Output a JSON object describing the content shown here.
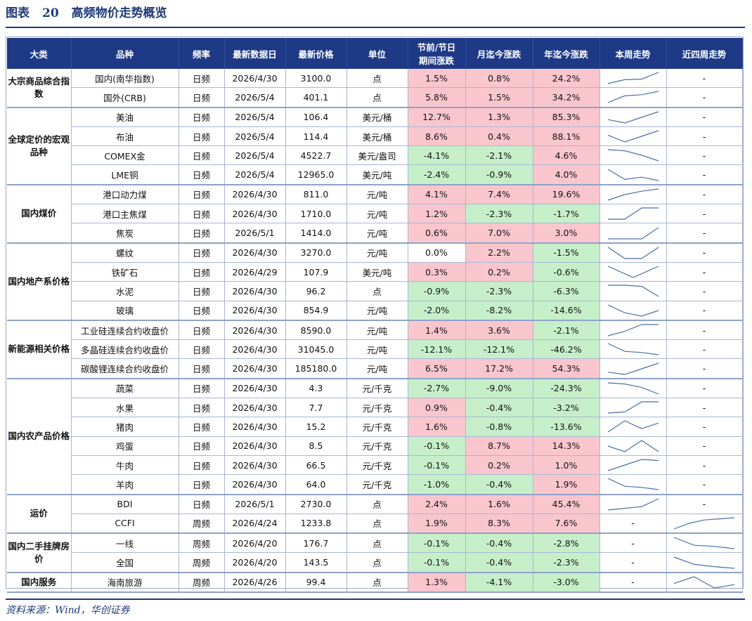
{
  "title": {
    "label": "图表",
    "number": "20",
    "text": "高频物价走势概览"
  },
  "headers": [
    "大类",
    "品种",
    "频率",
    "最新数据日",
    "最新价格",
    "单位",
    "节前/节日\n期间涨跌",
    "月迄今涨跌",
    "年迄今涨跌",
    "本周走势",
    "近四周走势"
  ],
  "colors": {
    "header_bg": "#1e3a86",
    "pos_bg": "#fac6cd",
    "neg_bg": "#c6efc9",
    "spark": "#4a6fa5"
  },
  "groups": [
    {
      "category": "大宗商品综合指数",
      "rows": [
        {
          "name": "国内(南华指数)",
          "freq": "日频",
          "date": "2026/4/30",
          "price": "3100.0",
          "unit": "点",
          "holiday": "1.5%",
          "mtd": "0.8%",
          "ytd": "24.2%",
          "week": [
            0,
            0.35,
            0.4,
            1
          ],
          "month": null,
          "week_text": "",
          "month_text": "-"
        },
        {
          "name": "国外(CRB)",
          "freq": "日频",
          "date": "2026/5/4",
          "price": "401.1",
          "unit": "点",
          "holiday": "5.8%",
          "mtd": "1.5%",
          "ytd": "34.2%",
          "week": [
            0,
            0.6,
            0.7,
            1
          ],
          "month": null,
          "week_text": "",
          "month_text": "-"
        }
      ]
    },
    {
      "category": "全球定价的宏观品种",
      "rows": [
        {
          "name": "美油",
          "freq": "日频",
          "date": "2026/5/4",
          "price": "106.4",
          "unit": "美元/桶",
          "holiday": "12.7%",
          "mtd": "1.3%",
          "ytd": "85.3%",
          "week": [
            0.3,
            0,
            0.5,
            1
          ],
          "month": null,
          "week_text": "",
          "month_text": "-"
        },
        {
          "name": "布油",
          "freq": "日频",
          "date": "2026/5/4",
          "price": "114.4",
          "unit": "美元/桶",
          "holiday": "8.6%",
          "mtd": "0.4%",
          "ytd": "88.1%",
          "week": [
            0.6,
            0,
            0.5,
            1
          ],
          "month": null,
          "week_text": "",
          "month_text": "-"
        },
        {
          "name": "COMEX金",
          "freq": "日频",
          "date": "2026/5/4",
          "price": "4522.7",
          "unit": "美元/盎司",
          "holiday": "-4.1%",
          "mtd": "-2.1%",
          "ytd": "4.6%",
          "week": [
            1,
            0.9,
            0.5,
            0
          ],
          "month": null,
          "week_text": "",
          "month_text": "-"
        },
        {
          "name": "LME铜",
          "freq": "日频",
          "date": "2026/5/4",
          "price": "12965.0",
          "unit": "美元/吨",
          "holiday": "-2.4%",
          "mtd": "-0.9%",
          "ytd": "4.0%",
          "week": [
            1,
            0.1,
            0.3,
            0
          ],
          "month": null,
          "week_text": "",
          "month_text": "-"
        }
      ]
    },
    {
      "category": "国内煤价",
      "rows": [
        {
          "name": "港口动力煤",
          "freq": "日频",
          "date": "2026/4/30",
          "price": "811.0",
          "unit": "元/吨",
          "holiday": "4.1%",
          "mtd": "7.4%",
          "ytd": "19.6%",
          "week": [
            0,
            0.5,
            0.8,
            1
          ],
          "month": null,
          "week_text": "",
          "month_text": "-"
        },
        {
          "name": "港口主焦煤",
          "freq": "日频",
          "date": "2026/4/30",
          "price": "1710.0",
          "unit": "元/吨",
          "holiday": "1.2%",
          "mtd": "-2.3%",
          "ytd": "-1.7%",
          "week": [
            0,
            0,
            1,
            1
          ],
          "month": null,
          "week_text": "",
          "month_text": "-"
        },
        {
          "name": "焦炭",
          "freq": "日频",
          "date": "2026/5/1",
          "price": "1414.0",
          "unit": "元/吨",
          "holiday": "0.6%",
          "mtd": "7.0%",
          "ytd": "3.0%",
          "week": [
            0,
            0,
            0,
            1
          ],
          "month": null,
          "week_text": "",
          "month_text": "-"
        }
      ]
    },
    {
      "category": "国内地产系价格",
      "rows": [
        {
          "name": "螺纹",
          "freq": "日频",
          "date": "2026/4/30",
          "price": "3270.0",
          "unit": "元/吨",
          "holiday": "0.0%",
          "mtd": "2.2%",
          "ytd": "-1.5%",
          "week": [
            1,
            0,
            0,
            1
          ],
          "month": null,
          "week_text": "",
          "month_text": "-"
        },
        {
          "name": "铁矿石",
          "freq": "日频",
          "date": "2026/4/29",
          "price": "107.9",
          "unit": "美元/吨",
          "holiday": "0.3%",
          "mtd": "0.2%",
          "ytd": "-0.6%",
          "week": [
            1,
            0,
            1
          ],
          "month": null,
          "week_text": "",
          "month_text": "-"
        },
        {
          "name": "水泥",
          "freq": "日频",
          "date": "2026/4/30",
          "price": "96.2",
          "unit": "点",
          "holiday": "-0.9%",
          "mtd": "-2.3%",
          "ytd": "-6.3%",
          "week": [
            1,
            1,
            0.9,
            0
          ],
          "month": null,
          "week_text": "",
          "month_text": "-"
        },
        {
          "name": "玻璃",
          "freq": "日频",
          "date": "2026/4/30",
          "price": "854.9",
          "unit": "元/吨",
          "holiday": "-2.0%",
          "mtd": "-8.2%",
          "ytd": "-14.6%",
          "week": [
            1,
            0.3,
            0,
            0.5
          ],
          "month": null,
          "week_text": "",
          "month_text": "-"
        }
      ]
    },
    {
      "category": "新能源相关价格",
      "rows": [
        {
          "name": "工业硅连续合约收盘价",
          "freq": "日频",
          "date": "2026/4/30",
          "price": "8590.0",
          "unit": "元/吨",
          "holiday": "1.4%",
          "mtd": "3.6%",
          "ytd": "-2.1%",
          "week": [
            0,
            0.4,
            1,
            1
          ],
          "month": null,
          "week_text": "",
          "month_text": "-"
        },
        {
          "name": "多晶硅连续合约收盘价",
          "freq": "日频",
          "date": "2026/4/30",
          "price": "31045.0",
          "unit": "元/吨",
          "holiday": "-12.1%",
          "mtd": "-12.1%",
          "ytd": "-46.2%",
          "week": [
            1,
            0.3,
            0.2,
            0
          ],
          "month": null,
          "week_text": "",
          "month_text": "-"
        },
        {
          "name": "碳酸锂连续合约收盘价",
          "freq": "日频",
          "date": "2026/4/30",
          "price": "185180.0",
          "unit": "元/吨",
          "holiday": "6.5%",
          "mtd": "17.2%",
          "ytd": "54.3%",
          "week": [
            0.2,
            0,
            0.5,
            1
          ],
          "month": null,
          "week_text": "",
          "month_text": "-"
        }
      ]
    },
    {
      "category": "国内农产品价格",
      "rows": [
        {
          "name": "蔬菜",
          "freq": "日频",
          "date": "2026/4/30",
          "price": "4.3",
          "unit": "元/千克",
          "holiday": "-2.7%",
          "mtd": "-9.0%",
          "ytd": "-24.3%",
          "week": [
            1,
            0.9,
            0.6,
            0
          ],
          "month": null,
          "week_text": "",
          "month_text": "-"
        },
        {
          "name": "水果",
          "freq": "日频",
          "date": "2026/4/30",
          "price": "7.7",
          "unit": "元/千克",
          "holiday": "0.9%",
          "mtd": "-0.4%",
          "ytd": "-3.2%",
          "week": [
            0,
            0.1,
            1,
            1
          ],
          "month": null,
          "week_text": "",
          "month_text": "-"
        },
        {
          "name": "猪肉",
          "freq": "日频",
          "date": "2026/4/30",
          "price": "15.2",
          "unit": "元/千克",
          "holiday": "1.6%",
          "mtd": "-0.8%",
          "ytd": "-13.6%",
          "week": [
            0,
            1,
            0.3,
            0.8
          ],
          "month": null,
          "week_text": "",
          "month_text": "-"
        },
        {
          "name": "鸡蛋",
          "freq": "日频",
          "date": "2026/4/30",
          "price": "8.5",
          "unit": "元/千克",
          "holiday": "-0.1%",
          "mtd": "8.7%",
          "ytd": "14.3%",
          "week": [
            0.5,
            0,
            1,
            0
          ],
          "month": null,
          "week_text": "",
          "month_text": "-"
        },
        {
          "name": "牛肉",
          "freq": "日频",
          "date": "2026/4/30",
          "price": "66.5",
          "unit": "元/千克",
          "holiday": "-0.1%",
          "mtd": "0.2%",
          "ytd": "1.0%",
          "week": [
            0,
            0.5,
            1,
            0.9
          ],
          "month": null,
          "week_text": "",
          "month_text": "-"
        },
        {
          "name": "羊肉",
          "freq": "日频",
          "date": "2026/4/30",
          "price": "64.0",
          "unit": "元/千克",
          "holiday": "-1.0%",
          "mtd": "-0.4%",
          "ytd": "1.9%",
          "week": [
            1,
            0.3,
            0.2,
            0
          ],
          "month": null,
          "week_text": "",
          "month_text": "-"
        }
      ]
    },
    {
      "category": "运价",
      "rows": [
        {
          "name": "BDI",
          "freq": "日频",
          "date": "2026/5/1",
          "price": "2730.0",
          "unit": "点",
          "holiday": "2.4%",
          "mtd": "1.6%",
          "ytd": "45.4%",
          "week": [
            0,
            0.15,
            0.3,
            1
          ],
          "month": null,
          "week_text": "",
          "month_text": "-"
        },
        {
          "name": "CCFI",
          "freq": "周频",
          "date": "2026/4/24",
          "price": "1233.8",
          "unit": "点",
          "holiday": "1.9%",
          "mtd": "8.3%",
          "ytd": "7.6%",
          "week": null,
          "month": [
            0,
            0.5,
            0.8,
            0.9,
            1
          ],
          "week_text": "-",
          "month_text": ""
        }
      ]
    },
    {
      "category": "国内二手挂牌房价",
      "rows": [
        {
          "name": "一线",
          "freq": "周频",
          "date": "2026/4/20",
          "price": "176.7",
          "unit": "点",
          "holiday": "-0.1%",
          "mtd": "-0.4%",
          "ytd": "-2.8%",
          "week": null,
          "month": [
            1,
            0.3,
            0.2,
            0
          ],
          "week_text": "-",
          "month_text": ""
        },
        {
          "name": "全国",
          "freq": "周频",
          "date": "2026/4/20",
          "price": "143.5",
          "unit": "点",
          "holiday": "-0.1%",
          "mtd": "-0.4%",
          "ytd": "-2.3%",
          "week": null,
          "month": [
            1,
            0.35,
            0.15,
            0
          ],
          "week_text": "-",
          "month_text": ""
        }
      ]
    },
    {
      "category": "国内服务",
      "rows": [
        {
          "name": "海南旅游",
          "freq": "周频",
          "date": "2026/4/26",
          "price": "99.4",
          "unit": "点",
          "holiday": "1.3%",
          "mtd": "-4.1%",
          "ytd": "-3.0%",
          "week": null,
          "month": [
            0.4,
            1,
            0,
            0.3
          ],
          "week_text": "-",
          "month_text": ""
        }
      ]
    }
  ],
  "source": "资料来源：Wind，华创证券"
}
